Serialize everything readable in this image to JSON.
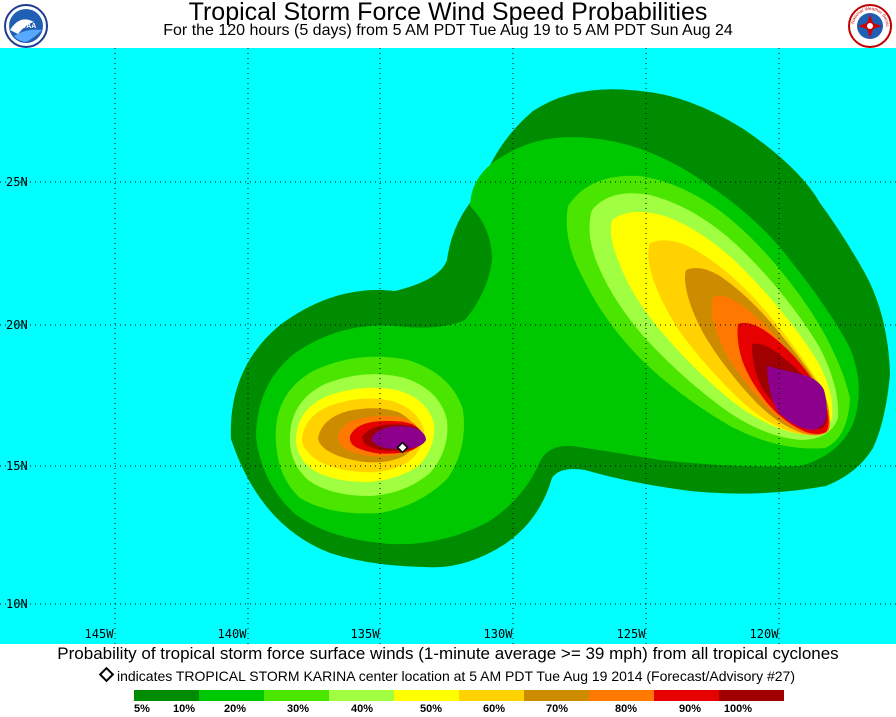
{
  "header": {
    "title": "Tropical Storm Force Wind Speed Probabilities",
    "subtitle": "For the 120 hours (5 days) from 5 AM PDT Tue Aug 19 to 5 AM PDT Sun Aug 24",
    "left_logo": "NOAA",
    "right_logo": "National Weather Service"
  },
  "map": {
    "ocean_color": "#00ffff",
    "lon_labels": [
      "145W",
      "140W",
      "135W",
      "130W",
      "125W",
      "120W"
    ],
    "lat_labels": [
      "25N",
      "20N",
      "15N",
      "10N"
    ],
    "storm_center": {
      "lat": 15.7,
      "lon": 133.6
    }
  },
  "footer": {
    "caption": "Probability of tropical storm force surface winds (1-minute average >= 39 mph) from all tropical cyclones",
    "note": "indicates TROPICAL STORM KARINA center location at 5 AM PDT Tue Aug 19 2014 (Forecast/Advisory #27)"
  },
  "legend": {
    "labels": [
      "5%",
      "10%",
      "20%",
      "30%",
      "40%",
      "50%",
      "60%",
      "70%",
      "80%",
      "90%",
      "100%"
    ],
    "colors": [
      "#008c00",
      "#00c800",
      "#4be600",
      "#a0ff40",
      "#ffff00",
      "#ffd200",
      "#cd8c00",
      "#ff7800",
      "#e60000",
      "#a00000",
      "#8c008c"
    ]
  }
}
